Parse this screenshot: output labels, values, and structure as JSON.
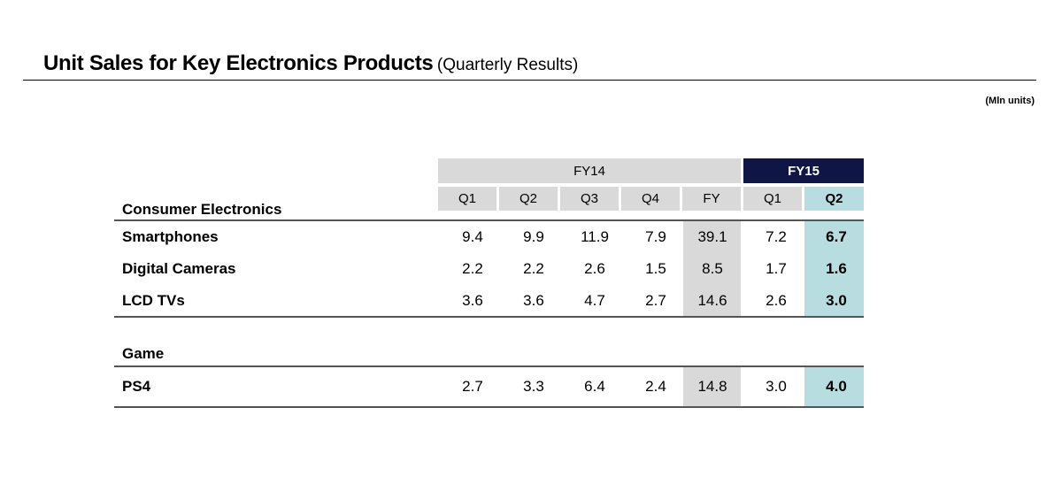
{
  "title": {
    "main": "Unit Sales for Key Electronics Products",
    "sub": "(Quarterly Results)"
  },
  "unit_note": "(Mln units)",
  "header": {
    "fy14": "FY14",
    "fy15": "FY15",
    "columns": [
      "Q1",
      "Q2",
      "Q3",
      "Q4",
      "FY",
      "Q1",
      "Q2"
    ]
  },
  "sections": [
    {
      "title": "Consumer Electronics",
      "rows": [
        {
          "label": "Smartphones",
          "values": [
            "9.4",
            "9.9",
            "11.9",
            "7.9",
            "39.1",
            "7.2",
            "6.7"
          ]
        },
        {
          "label": "Digital Cameras",
          "values": [
            "2.2",
            "2.2",
            "2.6",
            "1.5",
            "8.5",
            "1.7",
            "1.6"
          ]
        },
        {
          "label": "LCD TVs",
          "values": [
            "3.6",
            "3.6",
            "4.7",
            "2.7",
            "14.6",
            "2.6",
            "3.0"
          ]
        }
      ]
    },
    {
      "title": "Game",
      "rows": [
        {
          "label": "PS4",
          "values": [
            "2.7",
            "3.3",
            "6.4",
            "2.4",
            "14.8",
            "3.0",
            "4.0"
          ]
        }
      ]
    }
  ],
  "colors": {
    "fy15_header": "#0f1646",
    "fy_column": "#d9d9d9",
    "highlight_column": "#b8dde1"
  }
}
